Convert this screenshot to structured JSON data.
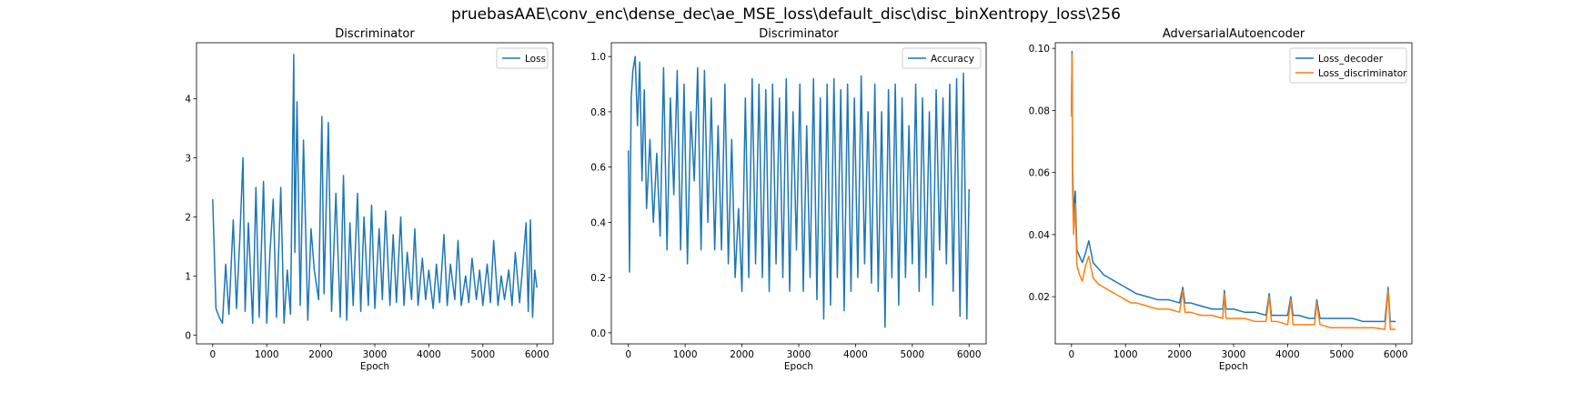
{
  "figure": {
    "suptitle": "pruebasAAE\\conv_enc\\dense_dec\\ae_MSE_loss\\default_disc\\disc_binXentropy_loss\\256"
  },
  "chart_data": [
    {
      "type": "line",
      "title": "Discriminator",
      "xlabel": "Epoch",
      "ylabel": "",
      "xlim": [
        -300,
        6300
      ],
      "ylim": [
        -0.15,
        4.95
      ],
      "xticks": [
        0,
        1000,
        2000,
        3000,
        4000,
        5000,
        6000
      ],
      "yticks": [
        0,
        1,
        2,
        3,
        4
      ],
      "legend": "top-right",
      "series": [
        {
          "name": "Loss",
          "color": "#1f77b4",
          "x": [
            0,
            60,
            120,
            180,
            240,
            300,
            380,
            440,
            500,
            560,
            600,
            660,
            740,
            800,
            860,
            940,
            1000,
            1060,
            1120,
            1180,
            1260,
            1320,
            1380,
            1440,
            1500,
            1520,
            1560,
            1620,
            1680,
            1760,
            1820,
            1880,
            1960,
            2020,
            2060,
            2140,
            2200,
            2280,
            2360,
            2420,
            2480,
            2540,
            2600,
            2680,
            2740,
            2800,
            2880,
            2940,
            3000,
            3080,
            3140,
            3200,
            3280,
            3340,
            3400,
            3480,
            3540,
            3600,
            3680,
            3740,
            3800,
            3880,
            3940,
            4000,
            4080,
            4140,
            4200,
            4280,
            4340,
            4400,
            4480,
            4540,
            4600,
            4680,
            4740,
            4800,
            4880,
            4940,
            5000,
            5080,
            5140,
            5200,
            5280,
            5340,
            5400,
            5480,
            5540,
            5600,
            5680,
            5740,
            5800,
            5840,
            5880,
            5920,
            5960,
            6000
          ],
          "y": [
            2.3,
            0.45,
            0.3,
            0.2,
            1.2,
            0.35,
            1.95,
            0.45,
            1.6,
            3.0,
            0.4,
            1.9,
            0.2,
            2.5,
            0.3,
            2.6,
            0.2,
            1.4,
            2.3,
            0.3,
            2.5,
            0.2,
            1.1,
            0.35,
            4.75,
            1.4,
            3.95,
            0.5,
            3.3,
            0.25,
            1.8,
            1.1,
            0.6,
            3.7,
            0.7,
            3.6,
            0.4,
            2.4,
            0.3,
            2.7,
            0.25,
            1.9,
            0.5,
            2.4,
            0.4,
            2.0,
            0.5,
            2.2,
            0.45,
            1.8,
            0.6,
            2.1,
            0.5,
            1.7,
            0.55,
            2.0,
            0.5,
            1.4,
            0.6,
            1.8,
            0.5,
            1.3,
            0.6,
            1.1,
            0.45,
            1.2,
            0.55,
            1.7,
            0.5,
            1.2,
            0.6,
            1.6,
            0.5,
            1.0,
            0.55,
            1.3,
            0.6,
            1.1,
            0.5,
            1.2,
            0.55,
            1.6,
            0.5,
            1.0,
            0.6,
            1.1,
            0.5,
            1.4,
            0.55,
            1.2,
            1.9,
            0.4,
            1.95,
            0.3,
            1.1,
            0.8
          ]
        }
      ]
    },
    {
      "type": "line",
      "title": "Discriminator",
      "xlabel": "Epoch",
      "ylabel": "",
      "xlim": [
        -300,
        6300
      ],
      "ylim": [
        -0.04,
        1.05
      ],
      "xticks": [
        0,
        1000,
        2000,
        3000,
        4000,
        5000,
        6000
      ],
      "yticks": [
        0.0,
        0.2,
        0.4,
        0.6,
        0.8,
        1.0
      ],
      "legend": "top-right",
      "series": [
        {
          "name": "Accuracy",
          "color": "#1f77b4",
          "x": [
            0,
            20,
            50,
            80,
            120,
            160,
            200,
            240,
            280,
            320,
            380,
            440,
            500,
            560,
            620,
            680,
            740,
            800,
            860,
            920,
            980,
            1040,
            1100,
            1160,
            1220,
            1280,
            1340,
            1400,
            1460,
            1520,
            1580,
            1640,
            1700,
            1760,
            1820,
            1880,
            1940,
            2000,
            2060,
            2120,
            2180,
            2240,
            2300,
            2360,
            2420,
            2480,
            2540,
            2600,
            2660,
            2720,
            2780,
            2840,
            2900,
            2960,
            3020,
            3080,
            3140,
            3200,
            3260,
            3320,
            3380,
            3440,
            3500,
            3560,
            3620,
            3680,
            3740,
            3800,
            3860,
            3920,
            3980,
            4040,
            4100,
            4160,
            4220,
            4280,
            4340,
            4400,
            4460,
            4520,
            4580,
            4640,
            4700,
            4760,
            4820,
            4880,
            4940,
            5000,
            5060,
            5120,
            5180,
            5240,
            5300,
            5360,
            5420,
            5480,
            5540,
            5600,
            5660,
            5720,
            5780,
            5840,
            5900,
            5960,
            6000
          ],
          "y": [
            0.66,
            0.22,
            0.85,
            0.95,
            1.0,
            0.75,
            0.98,
            0.55,
            0.88,
            0.45,
            0.7,
            0.4,
            0.65,
            0.35,
            0.96,
            0.3,
            0.85,
            0.5,
            0.95,
            0.3,
            0.9,
            0.25,
            0.8,
            0.55,
            0.96,
            0.3,
            0.95,
            0.4,
            0.85,
            0.3,
            0.75,
            0.3,
            0.9,
            0.25,
            0.7,
            0.2,
            0.45,
            0.15,
            0.85,
            0.2,
            0.92,
            0.25,
            0.9,
            0.2,
            0.88,
            0.15,
            0.9,
            0.25,
            0.85,
            0.2,
            0.92,
            0.15,
            0.8,
            0.3,
            0.9,
            0.15,
            0.75,
            0.2,
            0.92,
            0.12,
            0.85,
            0.05,
            0.9,
            0.1,
            0.92,
            0.2,
            0.88,
            0.08,
            0.9,
            0.15,
            0.85,
            0.2,
            0.93,
            0.25,
            0.8,
            0.18,
            0.9,
            0.15,
            0.8,
            0.02,
            0.88,
            0.2,
            0.9,
            0.1,
            0.85,
            0.2,
            0.75,
            0.25,
            0.9,
            0.15,
            0.85,
            0.2,
            0.8,
            0.1,
            0.88,
            0.3,
            0.85,
            0.25,
            0.9,
            0.15,
            0.92,
            0.06,
            0.94,
            0.05,
            0.52
          ]
        }
      ]
    },
    {
      "type": "line",
      "title": "AdversarialAutoencoder",
      "xlabel": "Epoch",
      "ylabel": "",
      "xlim": [
        -300,
        6300
      ],
      "ylim": [
        0.0048,
        0.1018
      ],
      "xticks": [
        0,
        1000,
        2000,
        3000,
        4000,
        5000,
        6000
      ],
      "yticks": [
        0.02,
        0.04,
        0.06,
        0.08,
        0.1
      ],
      "legend": "top-right",
      "series": [
        {
          "name": "Loss_decoder",
          "color": "#1f77b4",
          "x": [
            0,
            10,
            20,
            40,
            70,
            100,
            150,
            200,
            260,
            320,
            400,
            500,
            600,
            700,
            800,
            900,
            1000,
            1100,
            1200,
            1400,
            1600,
            1800,
            2000,
            2060,
            2100,
            2200,
            2400,
            2600,
            2800,
            2830,
            2860,
            3000,
            3200,
            3400,
            3600,
            3660,
            3700,
            3800,
            4000,
            4060,
            4100,
            4200,
            4400,
            4500,
            4540,
            4600,
            4800,
            5000,
            5200,
            5400,
            5600,
            5800,
            5860,
            5900,
            6000
          ],
          "y": [
            0.079,
            0.099,
            0.062,
            0.046,
            0.054,
            0.035,
            0.033,
            0.031,
            0.034,
            0.038,
            0.031,
            0.029,
            0.027,
            0.026,
            0.025,
            0.024,
            0.023,
            0.022,
            0.021,
            0.02,
            0.019,
            0.019,
            0.018,
            0.023,
            0.018,
            0.018,
            0.017,
            0.016,
            0.016,
            0.022,
            0.016,
            0.016,
            0.015,
            0.015,
            0.014,
            0.021,
            0.014,
            0.014,
            0.014,
            0.02,
            0.014,
            0.014,
            0.013,
            0.013,
            0.019,
            0.013,
            0.013,
            0.013,
            0.013,
            0.012,
            0.012,
            0.012,
            0.023,
            0.012,
            0.012
          ]
        },
        {
          "name": "Loss_discriminator",
          "color": "#ff7f0e",
          "x": [
            0,
            10,
            20,
            40,
            70,
            100,
            150,
            200,
            260,
            320,
            400,
            500,
            600,
            700,
            800,
            900,
            1000,
            1100,
            1200,
            1400,
            1600,
            1800,
            2000,
            2060,
            2100,
            2200,
            2400,
            2600,
            2800,
            2830,
            2860,
            3000,
            3200,
            3400,
            3600,
            3660,
            3700,
            3800,
            4000,
            4060,
            4100,
            4200,
            4400,
            4500,
            4540,
            4600,
            4800,
            5000,
            5200,
            5400,
            5600,
            5800,
            5860,
            5900,
            6000
          ],
          "y": [
            0.078,
            0.098,
            0.055,
            0.04,
            0.05,
            0.03,
            0.027,
            0.025,
            0.03,
            0.033,
            0.026,
            0.024,
            0.023,
            0.022,
            0.021,
            0.02,
            0.019,
            0.018,
            0.018,
            0.017,
            0.016,
            0.016,
            0.015,
            0.022,
            0.015,
            0.015,
            0.014,
            0.014,
            0.013,
            0.021,
            0.013,
            0.013,
            0.013,
            0.012,
            0.012,
            0.02,
            0.012,
            0.012,
            0.011,
            0.019,
            0.011,
            0.011,
            0.011,
            0.011,
            0.018,
            0.011,
            0.01,
            0.01,
            0.01,
            0.01,
            0.01,
            0.0095,
            0.022,
            0.0095,
            0.0095
          ]
        }
      ]
    }
  ]
}
